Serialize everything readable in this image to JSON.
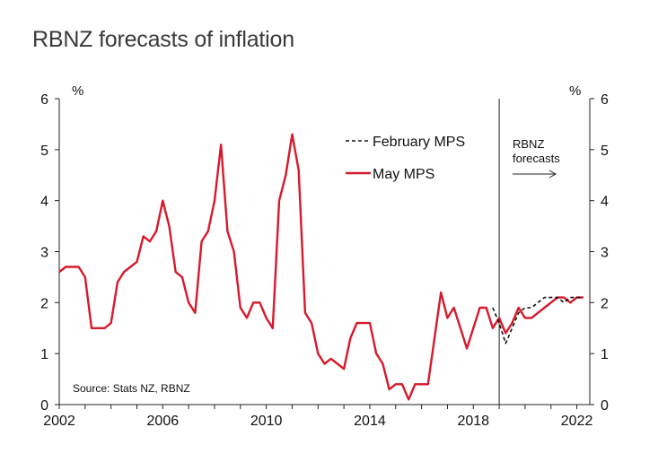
{
  "chart_data": {
    "type": "line",
    "title": "RBNZ forecasts of inflation",
    "ylabel_left": "%",
    "ylabel_right": "%",
    "ylim": [
      0,
      6
    ],
    "yticks": [
      0,
      1,
      2,
      3,
      4,
      5,
      6
    ],
    "xlim": [
      2002,
      2022.5
    ],
    "xticks": [
      2002,
      2006,
      2010,
      2014,
      2018,
      2022
    ],
    "forecast_start": 2019.0,
    "annotation": "RBNZ\nforecasts",
    "annotation_lines": [
      "RBNZ",
      "forecasts"
    ],
    "source": "Source: Stats NZ, RBNZ",
    "legend_position": "top-right",
    "series": [
      {
        "name": "February MPS",
        "style": "dashed",
        "color": "#111111",
        "x": [
          2018.75,
          2019.0,
          2019.25,
          2019.5,
          2019.75,
          2020.0,
          2020.25,
          2020.5,
          2020.75,
          2021.0,
          2021.25,
          2021.5,
          2021.75,
          2022.0,
          2022.25
        ],
        "values": [
          1.9,
          1.6,
          1.2,
          1.5,
          1.8,
          1.9,
          1.9,
          2.0,
          2.1,
          2.1,
          2.1,
          2.0,
          2.1,
          2.1,
          2.1
        ]
      },
      {
        "name": "May MPS",
        "style": "solid",
        "color": "#d7192b",
        "x": [
          2002.0,
          2002.25,
          2002.5,
          2002.75,
          2003.0,
          2003.25,
          2003.5,
          2003.75,
          2004.0,
          2004.25,
          2004.5,
          2004.75,
          2005.0,
          2005.25,
          2005.5,
          2005.75,
          2006.0,
          2006.25,
          2006.5,
          2006.75,
          2007.0,
          2007.25,
          2007.5,
          2007.75,
          2008.0,
          2008.25,
          2008.5,
          2008.75,
          2009.0,
          2009.25,
          2009.5,
          2009.75,
          2010.0,
          2010.25,
          2010.5,
          2010.75,
          2011.0,
          2011.25,
          2011.5,
          2011.75,
          2012.0,
          2012.25,
          2012.5,
          2012.75,
          2013.0,
          2013.25,
          2013.5,
          2013.75,
          2014.0,
          2014.25,
          2014.5,
          2014.75,
          2015.0,
          2015.25,
          2015.5,
          2015.75,
          2016.0,
          2016.25,
          2016.5,
          2016.75,
          2017.0,
          2017.25,
          2017.5,
          2017.75,
          2018.0,
          2018.25,
          2018.5,
          2018.75,
          2019.0,
          2019.25,
          2019.5,
          2019.75,
          2020.0,
          2020.25,
          2020.5,
          2020.75,
          2021.0,
          2021.25,
          2021.5,
          2021.75,
          2022.0,
          2022.25
        ],
        "values": [
          2.6,
          2.7,
          2.7,
          2.7,
          2.5,
          1.5,
          1.5,
          1.5,
          1.6,
          2.4,
          2.6,
          2.7,
          2.8,
          3.3,
          3.2,
          3.4,
          4.0,
          3.5,
          2.6,
          2.5,
          2.0,
          1.8,
          3.2,
          3.4,
          4.0,
          5.1,
          3.4,
          3.0,
          1.9,
          1.7,
          2.0,
          2.0,
          1.7,
          1.5,
          4.0,
          4.5,
          5.3,
          4.6,
          1.8,
          1.6,
          1.0,
          0.8,
          0.9,
          0.8,
          0.7,
          1.3,
          1.6,
          1.6,
          1.6,
          1.0,
          0.8,
          0.3,
          0.4,
          0.4,
          0.1,
          0.4,
          0.4,
          0.4,
          1.3,
          2.2,
          1.7,
          1.9,
          1.5,
          1.1,
          1.5,
          1.9,
          1.9,
          1.5,
          1.7,
          1.4,
          1.6,
          1.9,
          1.7,
          1.7,
          1.8,
          1.9,
          2.0,
          2.1,
          2.1,
          2.0,
          2.1,
          2.1
        ]
      }
    ]
  }
}
